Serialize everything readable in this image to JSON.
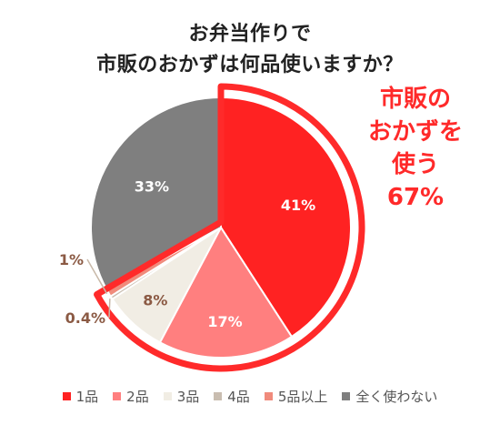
{
  "chart_data": {
    "type": "pie",
    "title_lines": [
      "お弁当作りで",
      "市販のおかずは何品使いますか？"
    ],
    "categories": [
      "1品",
      "2品",
      "3品",
      "4品",
      "5品以上",
      "全く使わない"
    ],
    "values": [
      41,
      17,
      8,
      0.4,
      1,
      33
    ],
    "value_labels": [
      "41%",
      "17%",
      "8%",
      "0.4%",
      "1%",
      "33%"
    ],
    "colors": [
      "#ff2222",
      "#ff7f7f",
      "#f1ede4",
      "#c9bdb0",
      "#f08b7c",
      "#7f7f7f"
    ],
    "legend_position": "bottom",
    "callout_lines": [
      "市販の",
      "おかずを",
      "使う",
      "67%"
    ],
    "callout_color": "#ff2a2a"
  }
}
